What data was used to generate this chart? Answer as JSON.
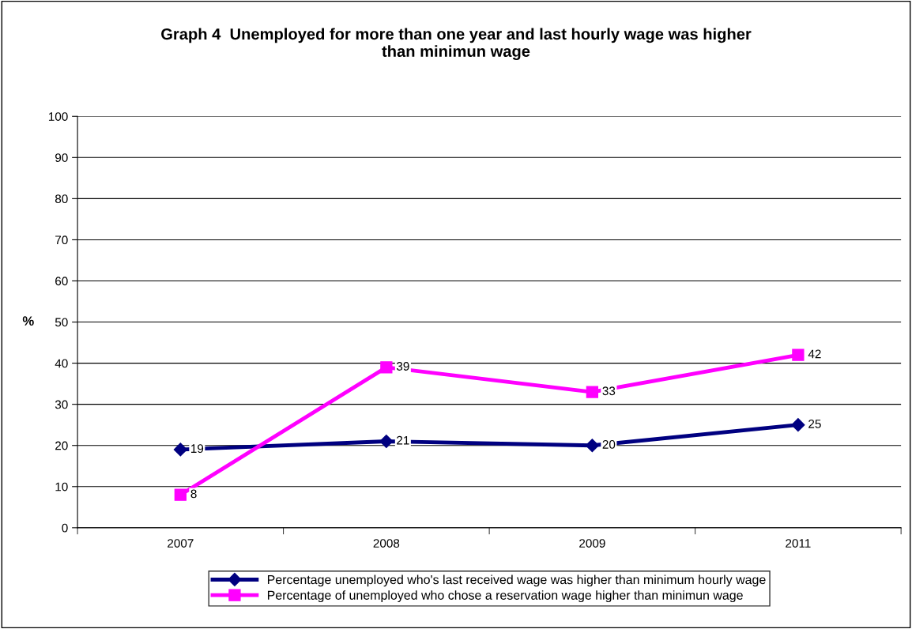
{
  "chart_data": {
    "type": "line",
    "title": "Graph 4  Unemployed for more than one year and last hourly wage was higher\nthan minimun wage",
    "ylabel": "%",
    "categories": [
      "2007",
      "2008",
      "2009",
      "2011"
    ],
    "series": [
      {
        "name": "Percentage unemployed who's last received wage was higher than minimum hourly wage",
        "color": "#000080",
        "marker": "diamond",
        "values": [
          19,
          21,
          20,
          25
        ]
      },
      {
        "name": "Percentage of unemployed who chose a reservation wage higher than minimun wage",
        "color": "#ff00ff",
        "marker": "square",
        "values": [
          8,
          39,
          33,
          42
        ]
      }
    ],
    "ylim": [
      0,
      100
    ],
    "yticks": [
      0,
      10,
      20,
      30,
      40,
      50,
      60,
      70,
      80,
      90,
      100
    ],
    "grid": "y",
    "legend": "bottom",
    "data_labels": true,
    "line_style": "solid"
  }
}
